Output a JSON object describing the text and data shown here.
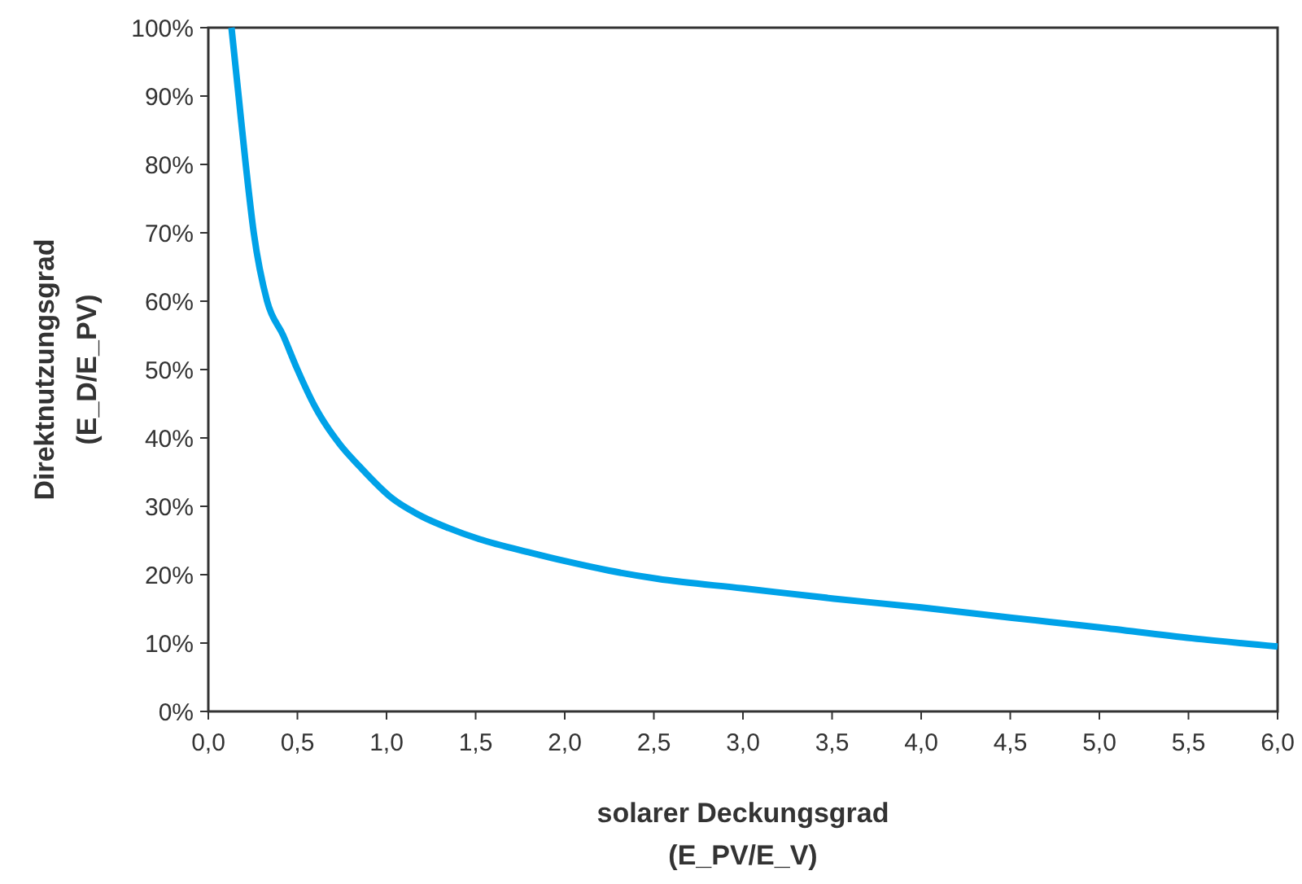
{
  "chart_data": {
    "type": "line",
    "xlabel": "solarer Deckungsgrad\n(E_PV/E_V)",
    "ylabel": "Direktnutzungsgrad\n(E_D/E_PV)",
    "series": [
      {
        "color": "#00a2e8",
        "x": [
          0.13,
          0.17,
          0.21,
          0.255,
          0.33,
          0.42,
          0.5,
          0.6,
          0.74,
          0.85,
          1.03,
          1.2,
          1.35,
          1.52,
          1.81,
          2.0,
          2.25,
          2.52,
          3.0,
          3.51,
          4.0,
          4.51,
          5.0,
          5.52,
          6.0
        ],
        "values": [
          100,
          90,
          80,
          70,
          60,
          55,
          50,
          44.5,
          39,
          35.8,
          31.2,
          28.5,
          26.8,
          25.2,
          23.2,
          22,
          20.6,
          19.4,
          18,
          16.5,
          15.2,
          13.7,
          12.3,
          10.7,
          9.5
        ]
      }
    ],
    "xlim": [
      0,
      6
    ],
    "ylim": [
      0,
      100
    ],
    "xticks": [
      {
        "value": 0,
        "label": "0,0"
      },
      {
        "value": 0.5,
        "label": "0,5"
      },
      {
        "value": 1,
        "label": "1,0"
      },
      {
        "value": 1.5,
        "label": "1,5"
      },
      {
        "value": 2,
        "label": "2,0"
      },
      {
        "value": 2.5,
        "label": "2,5"
      },
      {
        "value": 3,
        "label": "3,0"
      },
      {
        "value": 3.5,
        "label": "3,5"
      },
      {
        "value": 4,
        "label": "4,0"
      },
      {
        "value": 4.5,
        "label": "4,5"
      },
      {
        "value": 5,
        "label": "5,0"
      },
      {
        "value": 5.5,
        "label": "5,5"
      },
      {
        "value": 6,
        "label": "6,0"
      }
    ],
    "yticks": [
      {
        "value": 0,
        "label": "0%"
      },
      {
        "value": 10,
        "label": "10%"
      },
      {
        "value": 20,
        "label": "20%"
      },
      {
        "value": 30,
        "label": "30%"
      },
      {
        "value": 40,
        "label": "40%"
      },
      {
        "value": 50,
        "label": "50%"
      },
      {
        "value": 60,
        "label": "60%"
      },
      {
        "value": 70,
        "label": "70%"
      },
      {
        "value": 80,
        "label": "80%"
      },
      {
        "value": 90,
        "label": "90%"
      },
      {
        "value": 100,
        "label": "100%"
      }
    ],
    "grid": false,
    "marker": "none",
    "line_style": "solid"
  }
}
